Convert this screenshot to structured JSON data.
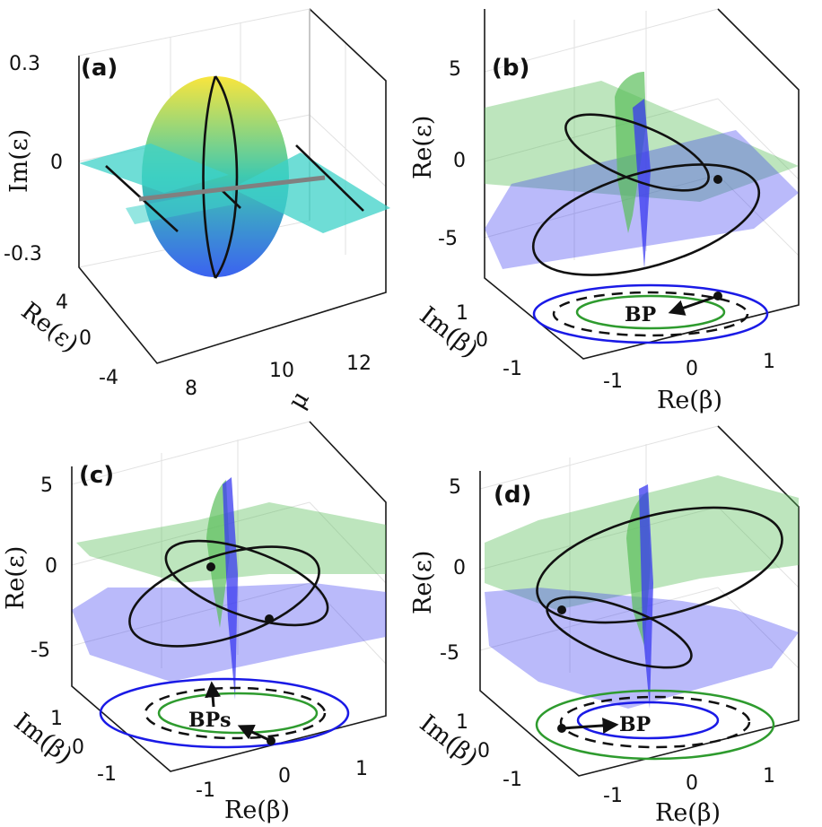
{
  "colors": {
    "surface_top": "#f9e53d",
    "surface_mid": "#3ec9b0",
    "surface_bottom": "#3b62f0",
    "plane_cyan": "#3dd2c8",
    "line_gray": "#808080",
    "green_sheet": "#5bbf5b",
    "blue_sheet": "#3a3af0",
    "ring_green": "#2e9b2e",
    "ring_blue": "#1a1ae6",
    "ring_dashed": "#111111"
  },
  "chart_data": [
    {
      "panel": "(a)",
      "type": "surface3d",
      "zlabel": "Im(ε)",
      "ylabel": "Re(ε)",
      "xlabel": "μ",
      "z_ticks": [
        "0.3",
        "0",
        "-0.3"
      ],
      "y_ticks": [
        "4",
        "0",
        "-4"
      ],
      "x_ticks": [
        "8",
        "10",
        "12"
      ],
      "zlim": [
        -0.35,
        0.35
      ],
      "ylim": [
        -5,
        5
      ],
      "xlim": [
        7,
        12.5
      ]
    },
    {
      "panel": "(b)",
      "type": "surface3d",
      "zlabel": "Re(ε)",
      "ylabel": "Im(β)",
      "xlabel": "Re(β)",
      "z_ticks": [
        "5",
        "0",
        "-5"
      ],
      "y_ticks": [
        "1",
        "0",
        "-1"
      ],
      "x_ticks": [
        "-1",
        "0",
        "1"
      ],
      "annotations": [
        "BP"
      ]
    },
    {
      "panel": "(c)",
      "type": "surface3d",
      "zlabel": "Re(ε)",
      "ylabel": "Im(β)",
      "xlabel": "Re(β)",
      "z_ticks": [
        "5",
        "0",
        "-5"
      ],
      "y_ticks": [
        "1",
        "0",
        "-1"
      ],
      "x_ticks": [
        "-1",
        "0",
        "1"
      ],
      "annotations": [
        "BPs"
      ]
    },
    {
      "panel": "(d)",
      "type": "surface3d",
      "zlabel": "Re(ε)",
      "ylabel": "Im(β)",
      "xlabel": "Re(β)",
      "z_ticks": [
        "5",
        "0",
        "-5"
      ],
      "y_ticks": [
        "1",
        "0",
        "-1"
      ],
      "x_ticks": [
        "-1",
        "0",
        "1"
      ],
      "annotations": [
        "BP"
      ]
    }
  ]
}
